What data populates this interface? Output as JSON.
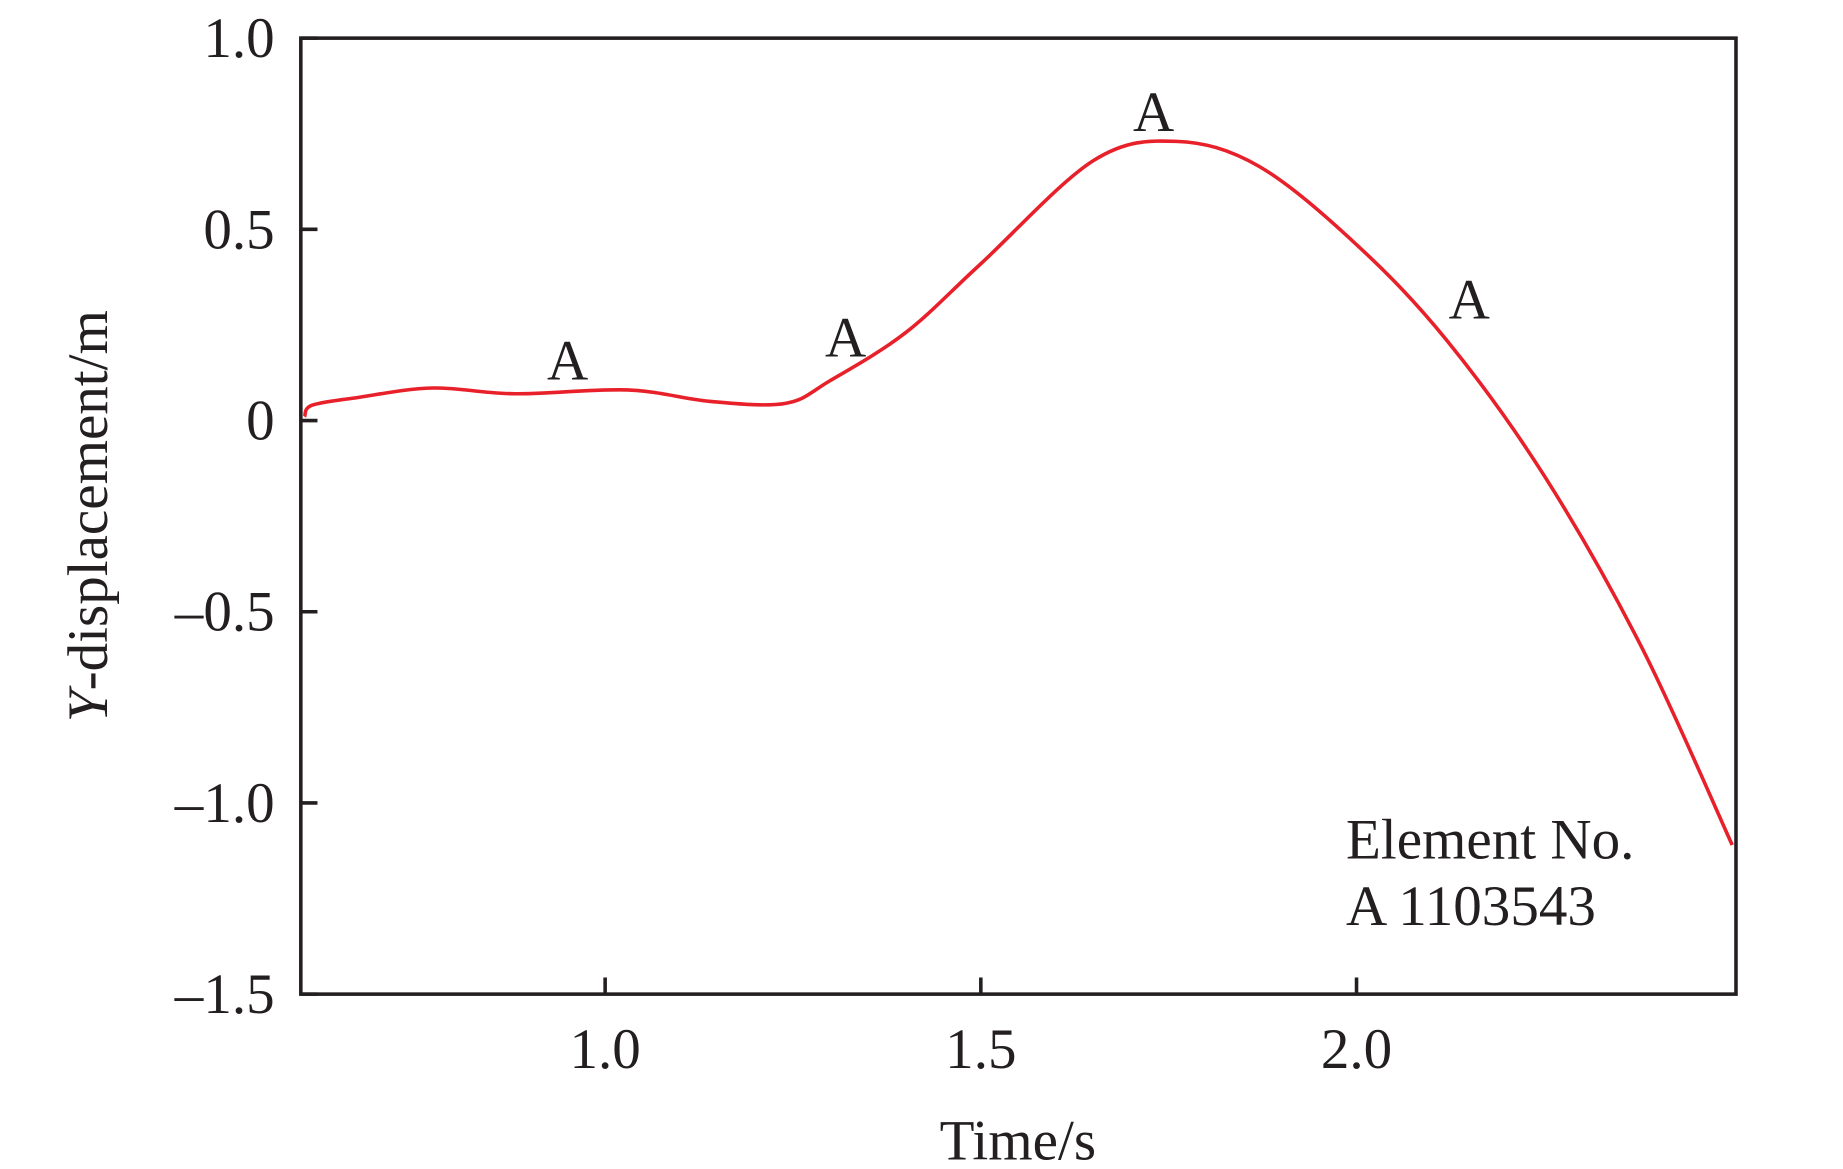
{
  "chart_data": {
    "type": "line",
    "title": "",
    "xlabel": "Time/s",
    "ylabel_italic": "Y",
    "ylabel_rest": "-displacement/m",
    "xlim": [
      0.595,
      2.505
    ],
    "ylim": [
      -1.5,
      1.0
    ],
    "xticks": [
      {
        "v": 1.0,
        "label": "1.0"
      },
      {
        "v": 1.5,
        "label": "1.5"
      },
      {
        "v": 2.0,
        "label": "2.0"
      }
    ],
    "yticks": [
      {
        "v": 1.0,
        "label": "1.0"
      },
      {
        "v": 0.5,
        "label": "0.5"
      },
      {
        "v": 0,
        "label": "0"
      },
      {
        "v": -0.5,
        "label": "–0.5"
      },
      {
        "v": -1.0,
        "label": "–1.0"
      },
      {
        "v": -1.5,
        "label": "–1.5"
      }
    ],
    "grid": false,
    "series": [
      {
        "name": "Element A 1103543",
        "color": "#e8202a",
        "x": [
          0.6,
          0.61,
          0.67,
          0.77,
          0.88,
          1.03,
          1.14,
          1.24,
          1.3,
          1.4,
          1.5,
          1.65,
          1.76,
          1.87,
          2.0,
          2.12,
          2.25,
          2.38,
          2.5
        ],
        "y": [
          0.01,
          0.04,
          0.06,
          0.085,
          0.07,
          0.08,
          0.05,
          0.045,
          0.105,
          0.23,
          0.41,
          0.68,
          0.73,
          0.665,
          0.46,
          0.21,
          -0.145,
          -0.595,
          -1.11
        ]
      }
    ],
    "annotations": [
      {
        "text": "A",
        "x": 0.95,
        "y": 0.16
      },
      {
        "text": "A",
        "x": 1.32,
        "y": 0.22
      },
      {
        "text": "A",
        "x": 1.73,
        "y": 0.81
      },
      {
        "text": "A",
        "x": 2.15,
        "y": 0.32
      }
    ],
    "legend": {
      "line1": "Element No.",
      "line2": "A 1103543",
      "placement": "bottom-right"
    }
  }
}
